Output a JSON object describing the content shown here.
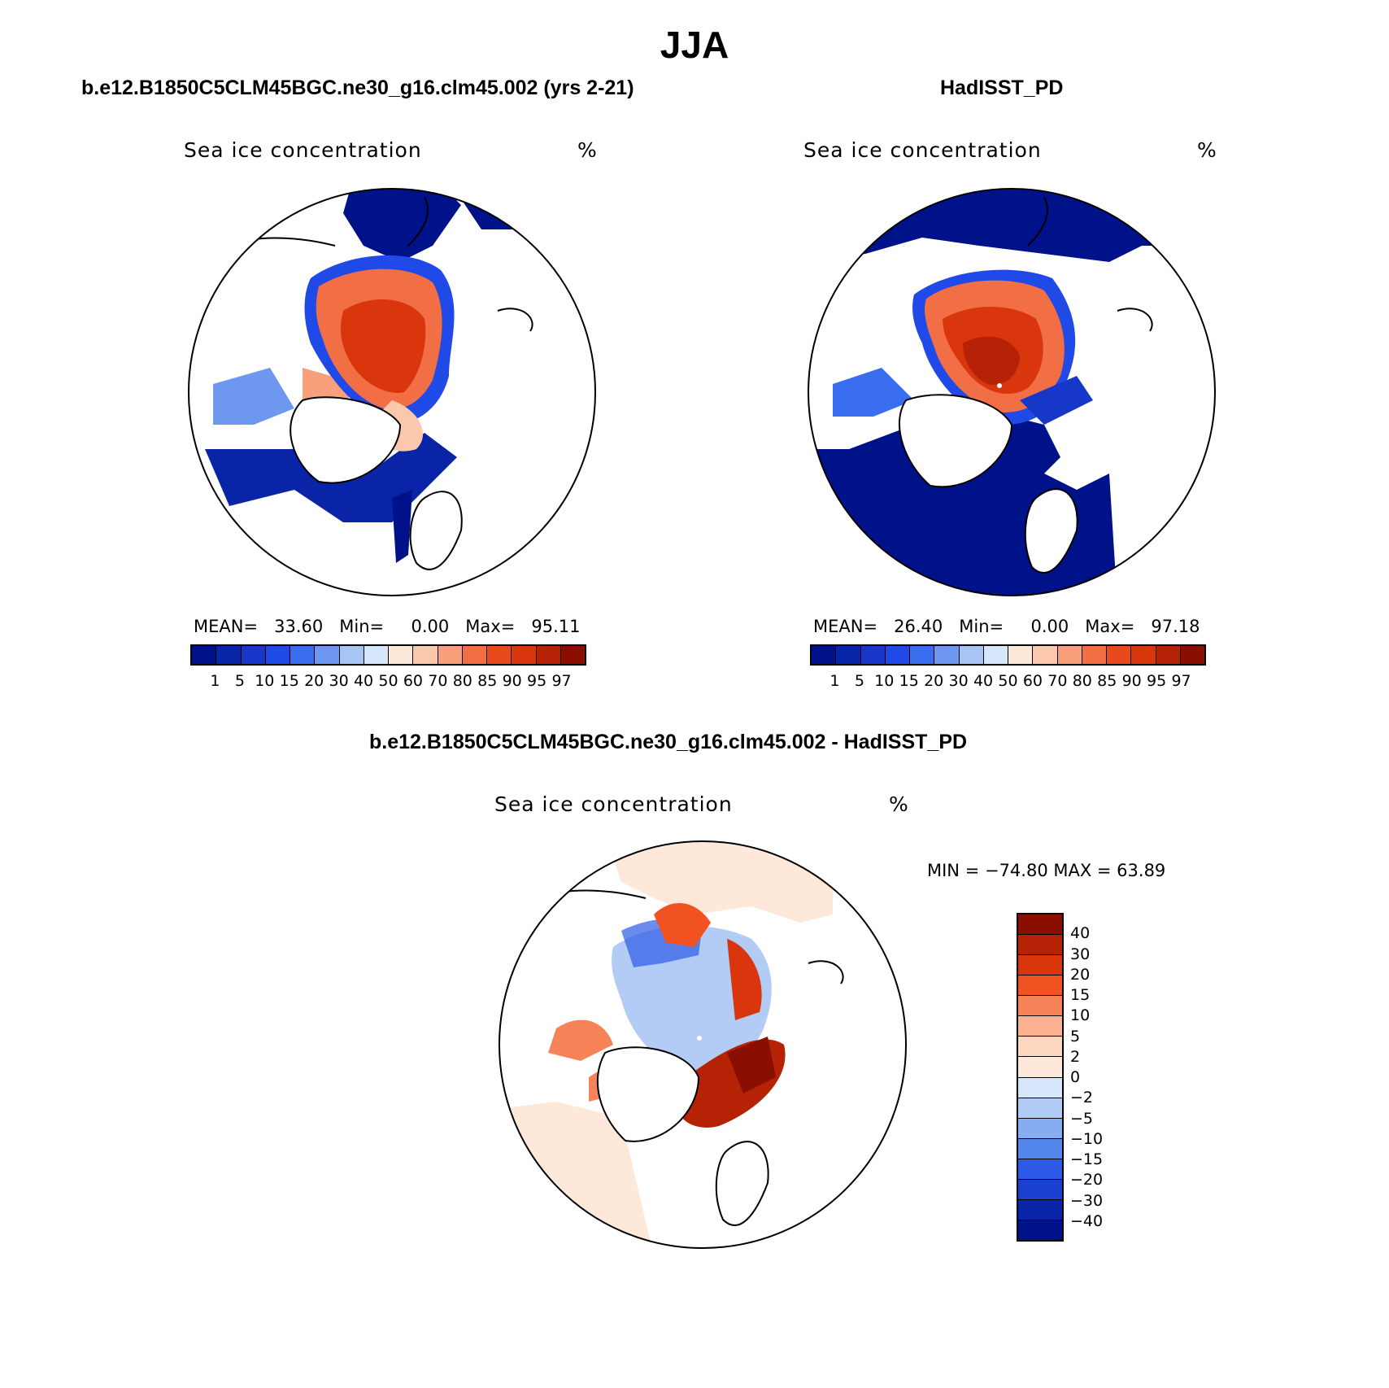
{
  "page": {
    "title": "JJA"
  },
  "panels": [
    {
      "case_title": "b.e12.B1850C5CLM45BGC.ne30_g16.clm45.002 (yrs 2-21)",
      "variable": "Sea ice concentration",
      "units": "%",
      "stats": {
        "mean_label": "MEAN=",
        "mean": "33.60",
        "min_label": "Min=",
        "min": "0.00",
        "max_label": "Max=",
        "max": "95.11"
      }
    },
    {
      "case_title": "HadISST_PD",
      "variable": "Sea ice concentration",
      "units": "%",
      "stats": {
        "mean_label": "MEAN=",
        "mean": "26.40",
        "min_label": "Min=",
        "min": "0.00",
        "max_label": "Max=",
        "max": "97.18"
      }
    },
    {
      "case_title": "b.e12.B1850C5CLM45BGC.ne30_g16.clm45.002 - HadISST_PD",
      "variable": "Sea ice concentration",
      "units": "%",
      "stats_text": "MIN = −74.80 MAX =   63.89"
    }
  ],
  "colorbar_main": {
    "colors": [
      "#00128a",
      "#0a24a8",
      "#1737c8",
      "#1f4ae8",
      "#3a6ef0",
      "#6e98f0",
      "#a8c4f5",
      "#d6e6fb",
      "#fde8da",
      "#fcc8ad",
      "#f8a07c",
      "#f26e45",
      "#e84a1e",
      "#d9360e",
      "#b52206",
      "#8a0f00"
    ],
    "labels": [
      "1",
      "5",
      "10",
      "15",
      "20",
      "30",
      "40",
      "50",
      "60",
      "70",
      "80",
      "85",
      "90",
      "95",
      "97"
    ]
  },
  "colorbar_diff": {
    "colors_top_to_bottom": [
      "#8a0f00",
      "#b52206",
      "#d9360e",
      "#f05222",
      "#f68358",
      "#fcb290",
      "#fdd6c0",
      "#fde8da",
      "#d6e6fb",
      "#b2ccf6",
      "#86acf2",
      "#5486ec",
      "#2c5ae6",
      "#1a40d0",
      "#0a24a8",
      "#00128a"
    ],
    "labels_top_to_bottom": [
      "40",
      "30",
      "20",
      "15",
      "10",
      "5",
      "2",
      "0",
      "−2",
      "−5",
      "−10",
      "−15",
      "−20",
      "−30",
      "−40"
    ]
  }
}
